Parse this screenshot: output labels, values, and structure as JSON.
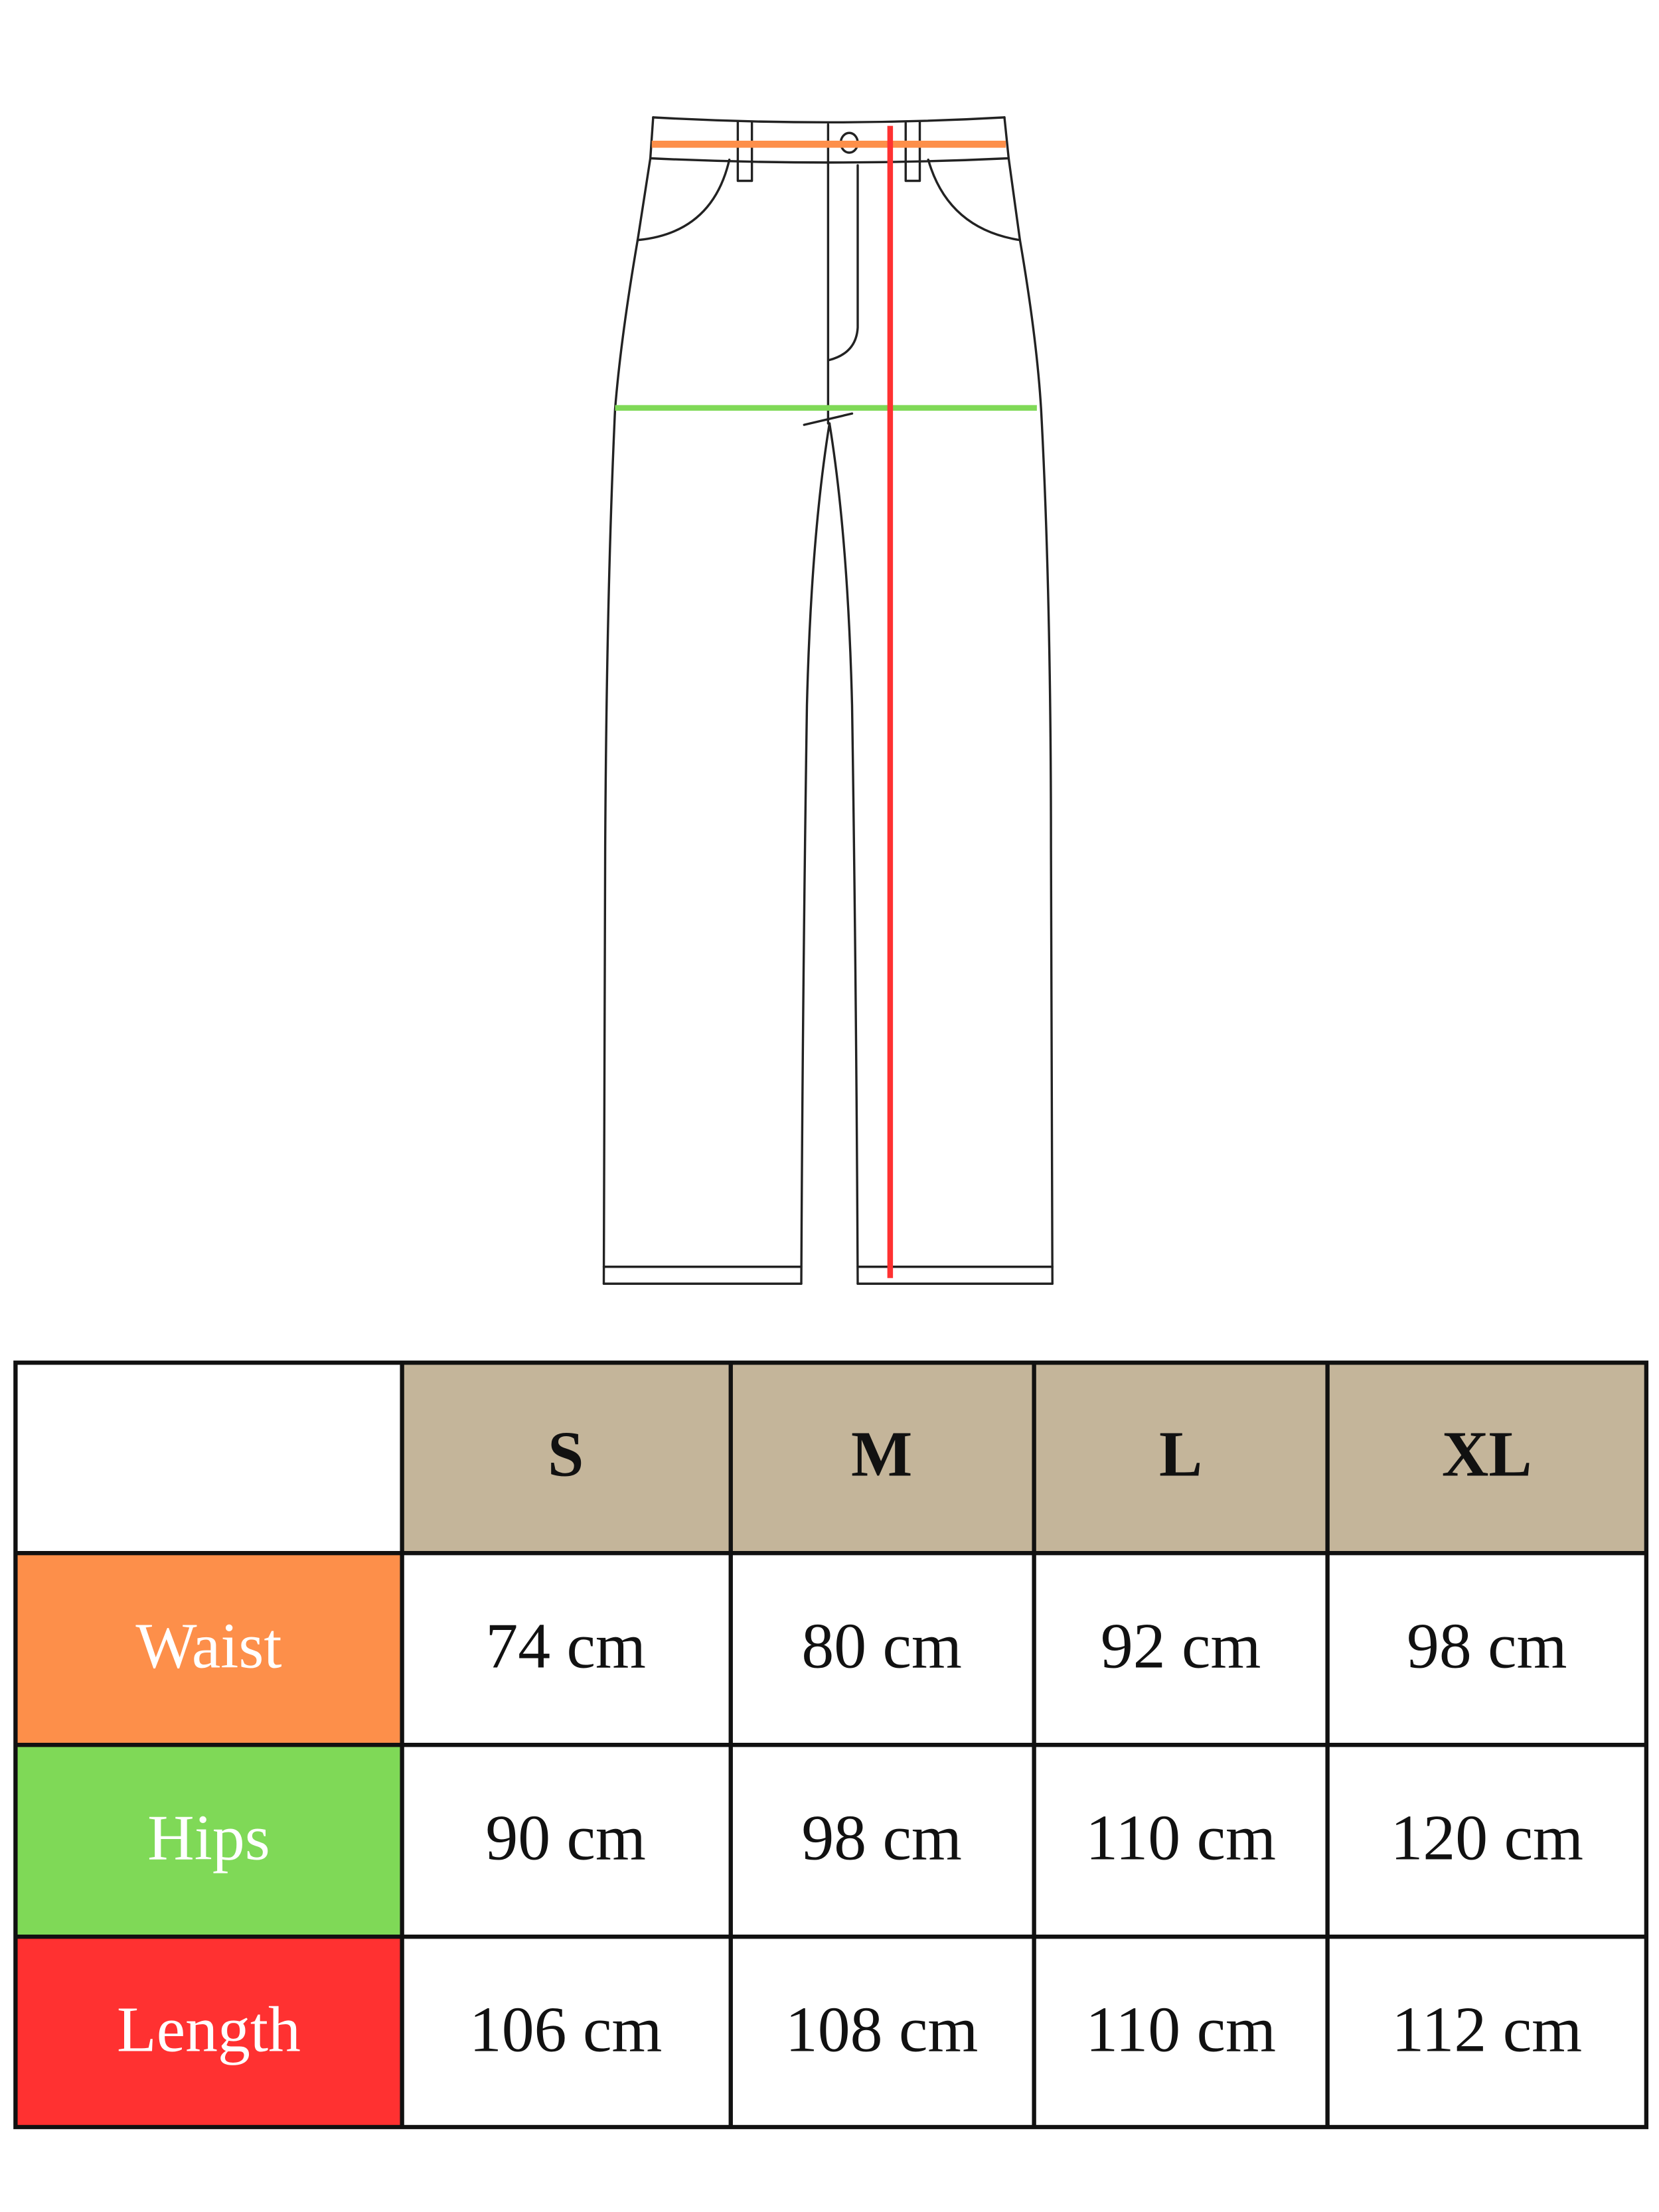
{
  "colors": {
    "waist": "#fd8f4a",
    "hips": "#7fd957",
    "length": "#ff3131",
    "header_bg": "#c4b59a",
    "outline": "#222222"
  },
  "diagram": {
    "subject": "trousers-front-view",
    "measure_lines": [
      {
        "measure": "waist",
        "color": "#fd8f4a"
      },
      {
        "measure": "hips",
        "color": "#7fd957"
      },
      {
        "measure": "length",
        "color": "#ff3131"
      }
    ]
  },
  "table": {
    "sizes": [
      "S",
      "M",
      "L",
      "XL"
    ],
    "rows": [
      {
        "label": "Waist",
        "color": "#fd8f4a",
        "values": [
          "74 cm",
          "80 cm",
          "92 cm",
          "98 cm"
        ]
      },
      {
        "label": "Hips",
        "color": "#7fd957",
        "values": [
          "90 cm",
          "98 cm",
          "110 cm",
          "120 cm"
        ]
      },
      {
        "label": "Length",
        "color": "#ff3131",
        "values": [
          "106 cm",
          "108 cm",
          "110 cm",
          "112 cm"
        ]
      }
    ]
  }
}
